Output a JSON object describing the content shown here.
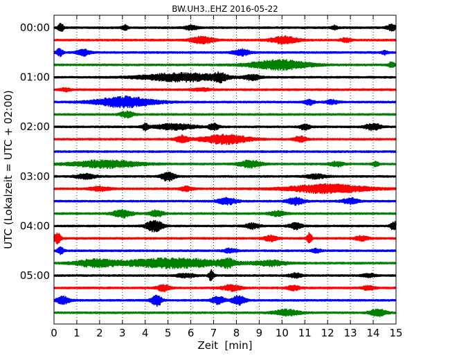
{
  "chart_data": {
    "type": "line",
    "title": "BW.UH3..EHZ 2016-05-22",
    "xlabel": "Zeit  [min]",
    "ylabel": "UTC (Lokalzeit = UTC + 02:00)",
    "xlim": [
      0,
      15
    ],
    "x_ticks": [
      0,
      1,
      2,
      3,
      4,
      5,
      6,
      7,
      8,
      9,
      10,
      11,
      12,
      13,
      14,
      15
    ],
    "x_tick_labels": [
      "0",
      "1",
      "2",
      "3",
      "4",
      "5",
      "6",
      "7",
      "8",
      "9",
      "10",
      "11",
      "12",
      "13",
      "14",
      "15"
    ],
    "y_tick_labels": [
      "00:00",
      "01:00",
      "02:00",
      "03:00",
      "04:00",
      "05:00"
    ],
    "y_tick_trace_index": [
      0,
      4,
      8,
      12,
      16,
      20
    ],
    "grid": {
      "vertical": true,
      "style": "dotted"
    },
    "trace_colors": [
      "#000000",
      "#ff0000",
      "#0000ff",
      "#008000"
    ],
    "series": [
      {
        "start": "00:00",
        "color": "#000000",
        "events": [
          {
            "t": 0.3,
            "a": 0.7,
            "w": 0.08
          },
          {
            "t": 3.1,
            "a": 0.4,
            "w": 0.1
          },
          {
            "t": 6.0,
            "a": 0.35,
            "w": 0.2
          },
          {
            "t": 12.3,
            "a": 0.3,
            "w": 0.1
          },
          {
            "t": 14.8,
            "a": 0.45,
            "w": 0.15
          }
        ]
      },
      {
        "start": "00:15",
        "color": "#ff0000",
        "events": [
          {
            "t": 6.5,
            "a": 0.55,
            "w": 0.35
          },
          {
            "t": 10.1,
            "a": 0.6,
            "w": 0.4
          },
          {
            "t": 12.8,
            "a": 0.3,
            "w": 0.15
          }
        ]
      },
      {
        "start": "00:30",
        "color": "#0000ff",
        "events": [
          {
            "t": 0.25,
            "a": 0.6,
            "w": 0.1
          },
          {
            "t": 1.3,
            "a": 0.5,
            "w": 0.2
          },
          {
            "t": 8.2,
            "a": 0.5,
            "w": 0.25
          },
          {
            "t": 14.5,
            "a": 0.3,
            "w": 0.1
          }
        ]
      },
      {
        "start": "00:45",
        "color": "#008000",
        "events": [
          {
            "t": 9.9,
            "a": 0.75,
            "w": 0.9
          },
          {
            "t": 14.8,
            "a": 0.4,
            "w": 0.1
          }
        ]
      },
      {
        "start": "01:00",
        "color": "#000000",
        "events": [
          {
            "t": 5.6,
            "a": 0.65,
            "w": 1.2
          },
          {
            "t": 7.3,
            "a": 0.55,
            "w": 0.2
          },
          {
            "t": 8.7,
            "a": 0.4,
            "w": 0.25
          }
        ]
      },
      {
        "start": "01:15",
        "color": "#ff0000",
        "events": [
          {
            "t": 0.5,
            "a": 0.25,
            "w": 0.15
          },
          {
            "t": 6.5,
            "a": 0.2,
            "w": 0.3
          }
        ]
      },
      {
        "start": "01:30",
        "color": "#0000ff",
        "events": [
          {
            "t": 3.1,
            "a": 0.85,
            "w": 0.9
          },
          {
            "t": 11.2,
            "a": 0.4,
            "w": 0.15
          },
          {
            "t": 12.2,
            "a": 0.3,
            "w": 0.2
          }
        ]
      },
      {
        "start": "01:45",
        "color": "#008000",
        "events": [
          {
            "t": 3.2,
            "a": 0.5,
            "w": 0.2
          }
        ]
      },
      {
        "start": "02:00",
        "color": "#000000",
        "events": [
          {
            "t": 4.0,
            "a": 0.5,
            "w": 0.1
          },
          {
            "t": 5.3,
            "a": 0.45,
            "w": 0.6
          },
          {
            "t": 7.0,
            "a": 0.55,
            "w": 0.15
          },
          {
            "t": 11.0,
            "a": 0.45,
            "w": 0.15
          },
          {
            "t": 14.0,
            "a": 0.5,
            "w": 0.25
          }
        ]
      },
      {
        "start": "02:15",
        "color": "#ff0000",
        "events": [
          {
            "t": 5.6,
            "a": 0.6,
            "w": 0.2
          },
          {
            "t": 7.5,
            "a": 0.75,
            "w": 0.7
          },
          {
            "t": 10.8,
            "a": 0.45,
            "w": 0.2
          }
        ]
      },
      {
        "start": "02:30",
        "color": "#0000ff",
        "events": []
      },
      {
        "start": "02:45",
        "color": "#008000",
        "events": [
          {
            "t": 2.3,
            "a": 0.6,
            "w": 1.0
          },
          {
            "t": 8.6,
            "a": 0.55,
            "w": 0.35
          },
          {
            "t": 12.4,
            "a": 0.4,
            "w": 0.2
          },
          {
            "t": 14.1,
            "a": 0.35,
            "w": 0.1
          }
        ]
      },
      {
        "start": "03:00",
        "color": "#000000",
        "events": [
          {
            "t": 1.4,
            "a": 0.4,
            "w": 0.3
          },
          {
            "t": 5.0,
            "a": 0.75,
            "w": 0.2
          },
          {
            "t": 11.5,
            "a": 0.35,
            "w": 0.3
          }
        ]
      },
      {
        "start": "03:15",
        "color": "#ff0000",
        "events": [
          {
            "t": 2.0,
            "a": 0.35,
            "w": 0.3
          },
          {
            "t": 5.8,
            "a": 0.35,
            "w": 0.2
          },
          {
            "t": 12.0,
            "a": 0.7,
            "w": 1.2
          }
        ]
      },
      {
        "start": "03:30",
        "color": "#0000ff",
        "events": [
          {
            "t": 7.6,
            "a": 0.5,
            "w": 0.3
          },
          {
            "t": 10.6,
            "a": 0.55,
            "w": 0.25
          },
          {
            "t": 13.0,
            "a": 0.45,
            "w": 0.25
          }
        ]
      },
      {
        "start": "03:45",
        "color": "#008000",
        "events": [
          {
            "t": 3.0,
            "a": 0.6,
            "w": 0.3
          },
          {
            "t": 4.5,
            "a": 0.5,
            "w": 0.2
          },
          {
            "t": 9.8,
            "a": 0.4,
            "w": 0.25
          }
        ]
      },
      {
        "start": "04:00",
        "color": "#000000",
        "events": [
          {
            "t": 4.4,
            "a": 0.95,
            "w": 0.25
          },
          {
            "t": 8.7,
            "a": 0.45,
            "w": 0.2
          },
          {
            "t": 10.6,
            "a": 0.5,
            "w": 0.2
          },
          {
            "t": 14.9,
            "a": 0.7,
            "w": 0.1
          }
        ]
      },
      {
        "start": "04:15",
        "color": "#ff0000",
        "events": [
          {
            "t": 0.15,
            "a": 0.95,
            "w": 0.1
          },
          {
            "t": 9.5,
            "a": 0.45,
            "w": 0.2
          },
          {
            "t": 11.2,
            "a": 0.85,
            "w": 0.08
          },
          {
            "t": 13.5,
            "a": 0.35,
            "w": 0.2
          }
        ]
      },
      {
        "start": "04:30",
        "color": "#0000ff",
        "events": [
          {
            "t": 0.3,
            "a": 0.55,
            "w": 0.1
          },
          {
            "t": 7.7,
            "a": 0.3,
            "w": 0.2
          },
          {
            "t": 11.5,
            "a": 0.3,
            "w": 0.15
          }
        ]
      },
      {
        "start": "04:45",
        "color": "#008000",
        "events": [
          {
            "t": 1.8,
            "a": 0.55,
            "w": 0.6
          },
          {
            "t": 5.2,
            "a": 0.75,
            "w": 1.6
          },
          {
            "t": 7.6,
            "a": 0.6,
            "w": 0.2
          },
          {
            "t": 9.5,
            "a": 0.4,
            "w": 0.5
          }
        ]
      },
      {
        "start": "05:00",
        "color": "#000000",
        "events": [
          {
            "t": 5.8,
            "a": 0.3,
            "w": 0.3
          },
          {
            "t": 6.9,
            "a": 0.85,
            "w": 0.08
          },
          {
            "t": 10.6,
            "a": 0.35,
            "w": 0.2
          },
          {
            "t": 13.8,
            "a": 0.3,
            "w": 0.2
          }
        ]
      },
      {
        "start": "05:15",
        "color": "#ff0000",
        "events": [
          {
            "t": 4.8,
            "a": 0.5,
            "w": 0.2
          },
          {
            "t": 7.8,
            "a": 0.45,
            "w": 0.3
          },
          {
            "t": 10.5,
            "a": 0.35,
            "w": 0.2
          },
          {
            "t": 13.8,
            "a": 0.35,
            "w": 0.2
          }
        ]
      },
      {
        "start": "05:30",
        "color": "#0000ff",
        "events": [
          {
            "t": 0.4,
            "a": 0.6,
            "w": 0.2
          },
          {
            "t": 4.5,
            "a": 1.0,
            "w": 0.15
          },
          {
            "t": 7.2,
            "a": 0.6,
            "w": 0.2
          },
          {
            "t": 8.1,
            "a": 0.75,
            "w": 0.2
          }
        ]
      },
      {
        "start": "05:45",
        "color": "#008000",
        "events": [
          {
            "t": 10.2,
            "a": 0.45,
            "w": 0.4
          },
          {
            "t": 14.2,
            "a": 0.55,
            "w": 0.25
          }
        ]
      }
    ]
  }
}
